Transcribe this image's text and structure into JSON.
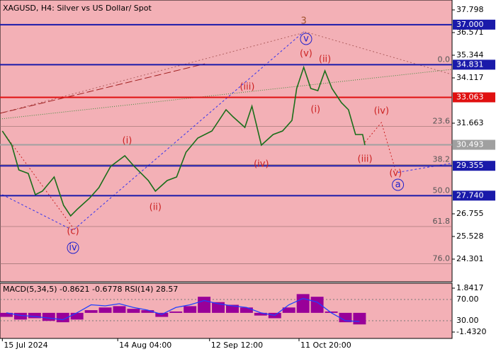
{
  "chart_data": [
    {
      "type": "line",
      "title": "XAGUSD, H4:  Silver vs US Dollar/ Spot",
      "x": [
        1,
        5,
        8,
        12,
        15,
        18,
        23,
        27,
        30,
        33,
        38,
        42,
        47,
        53,
        57,
        63,
        66,
        71,
        75,
        79,
        84,
        90,
        96,
        99,
        104,
        107,
        111,
        116,
        120,
        124,
        126,
        129,
        132,
        135,
        138,
        141,
        145,
        148,
        151,
        154,
        155
      ],
      "values": [
        31.241,
        30.475,
        29.133,
        28.941,
        27.791,
        27.982,
        28.749,
        27.216,
        26.641,
        27.024,
        27.599,
        28.174,
        29.325,
        29.9,
        29.325,
        28.557,
        27.982,
        28.557,
        28.749,
        30.091,
        30.858,
        31.241,
        32.392,
        32.008,
        31.433,
        32.584,
        30.475,
        31.05,
        31.241,
        31.817,
        33.542,
        34.692,
        33.542,
        33.427,
        34.501,
        33.542,
        32.775,
        32.392,
        31.05,
        31.05,
        30.475
      ],
      "color": "#1a6e1a",
      "background": "#f3b0b6",
      "xlim": [
        0,
        192
      ],
      "ylim": [
        23.074,
        38.335
      ],
      "xticks": [
        {
          "value": 1,
          "label": "15 Jul 2024"
        },
        {
          "value": 50,
          "label": "14 Aug 04:00"
        },
        {
          "value": 89,
          "label": "12 Sep 12:00"
        },
        {
          "value": 127,
          "label": "11 Oct 20:00"
        }
      ],
      "yticks": [
        37.798,
        36.571,
        35.344,
        34.117,
        31.663,
        26.755,
        25.528,
        24.301
      ],
      "levels": [
        {
          "value": 37.0,
          "label": "37.000",
          "color": "#1a1aaa"
        },
        {
          "value": 34.831,
          "label": "34.831",
          "color": "#1a1aaa"
        },
        {
          "value": 33.063,
          "label": "33.063",
          "color": "#e01010"
        },
        {
          "value": 30.493,
          "label": "30.493",
          "color": "#a0a0a0"
        },
        {
          "value": 29.355,
          "label": "29.355",
          "color": "#1a1aaa"
        },
        {
          "value": 27.74,
          "label": "27.740",
          "color": "#1a1aaa"
        }
      ],
      "fib_levels": [
        {
          "price": 34.831,
          "label": "0.0"
        },
        {
          "price": 31.484,
          "label": "23.6"
        },
        {
          "price": 29.414,
          "label": "38.2"
        },
        {
          "price": 27.74,
          "label": "50.0"
        },
        {
          "price": 26.067,
          "label": "61.8"
        },
        {
          "price": 24.053,
          "label": "76.0"
        }
      ],
      "guide_lines": [
        {
          "color": "#3333ee",
          "dash": "3,3",
          "x": [
            1,
            31,
            129
          ],
          "y": [
            27.791,
            25.86,
            36.61
          ]
        },
        {
          "color": "#3333ee",
          "dash": "3,3",
          "x": [
            169,
            192
          ],
          "y": [
            29.0,
            29.5
          ]
        },
        {
          "color": "#cc2222",
          "dash": "2,3",
          "x": [
            1,
            31
          ],
          "y": [
            31.241,
            26.0
          ]
        },
        {
          "color": "#cc2222",
          "dash": "2,3",
          "x": [
            154,
            162,
            168
          ],
          "y": [
            30.48,
            31.7,
            29.1
          ]
        },
        {
          "color": "#b06060",
          "dash": "2,3",
          "x": [
            0,
            130,
            192
          ],
          "y": [
            32.2,
            36.6,
            34.3
          ]
        },
        {
          "color": "#a02020",
          "dash": "10,4",
          "x": [
            0,
            87
          ],
          "y": [
            32.2,
            34.88
          ]
        },
        {
          "color": "#3a8a3a",
          "dash": "1,2",
          "x": [
            0,
            192
          ],
          "y": [
            31.89,
            34.58
          ]
        }
      ],
      "annotations": [
        {
          "text": "3",
          "x": 129,
          "y": 37.185,
          "color": "#a0522d",
          "circled": false
        },
        {
          "text": "v",
          "x": 130,
          "y": 36.226,
          "color": "#2222cc",
          "circled": true
        },
        {
          "text": "(v)",
          "x": 130,
          "y": 35.421,
          "color": "#cc2222",
          "circled": false
        },
        {
          "text": "(ii)",
          "x": 138,
          "y": 35.114,
          "color": "#cc2222",
          "circled": false
        },
        {
          "text": "(iii)",
          "x": 105,
          "y": 33.619,
          "color": "#cc2222",
          "circled": false
        },
        {
          "text": "(i)",
          "x": 134,
          "y": 32.392,
          "color": "#cc2222",
          "circled": false
        },
        {
          "text": "(iv)",
          "x": 162,
          "y": 32.315,
          "color": "#cc2222",
          "circled": false
        },
        {
          "text": "(iv)",
          "x": 111,
          "y": 29.439,
          "color": "#cc2222",
          "circled": false
        },
        {
          "text": "(iii)",
          "x": 155,
          "y": 29.708,
          "color": "#cc2222",
          "circled": false
        },
        {
          "text": "(v)",
          "x": 168,
          "y": 28.941,
          "color": "#cc2222",
          "circled": false
        },
        {
          "text": "a",
          "x": 169,
          "y": 28.327,
          "color": "#2222cc",
          "circled": true
        },
        {
          "text": "(i)",
          "x": 54,
          "y": 30.705,
          "color": "#cc2222",
          "circled": false
        },
        {
          "text": "(ii)",
          "x": 66,
          "y": 27.101,
          "color": "#cc2222",
          "circled": false
        },
        {
          "text": "(c)",
          "x": 31,
          "y": 25.797,
          "color": "#cc2222",
          "circled": false
        },
        {
          "text": "iv",
          "x": 31,
          "y": 24.915,
          "color": "#2222cc",
          "circled": true
        }
      ]
    },
    {
      "type": "bar",
      "title": "MACD(5,34,5) -0.8621 -0.6778 RSI(14) 28.57",
      "x": [
        0,
        6,
        12,
        18,
        24,
        30,
        36,
        42,
        48,
        54,
        60,
        66,
        72,
        78,
        84,
        90,
        96,
        102,
        108,
        114,
        120,
        126,
        132,
        138,
        144,
        150
      ],
      "values": [
        -0.3,
        -0.5,
        -0.4,
        -0.6,
        -0.7,
        -0.5,
        0.2,
        0.4,
        0.5,
        0.3,
        0.2,
        -0.3,
        0.1,
        0.5,
        1.2,
        0.8,
        0.6,
        0.4,
        -0.2,
        -0.4,
        0.4,
        1.4,
        1.2,
        0.1,
        -0.7,
        -0.8621
      ],
      "color": "#990099",
      "background": "#f3b0b6",
      "xlim": [
        0,
        192
      ],
      "ylim": [
        -1.907,
        2.211
      ],
      "yticks": [
        1.8417,
        {
          "value": -1.432,
          "label": "-1.4320"
        }
      ],
      "rsi": {
        "axis": "y2",
        "color": "#2040ff",
        "values": [
          45,
          40,
          38,
          35,
          32,
          45,
          60,
          58,
          62,
          55,
          50,
          42,
          55,
          60,
          68,
          62,
          58,
          55,
          45,
          40,
          60,
          72,
          65,
          45,
          30,
          28.57
        ]
      },
      "y2lim": [
        -3.3,
        100.7
      ],
      "y2ticks": [
        {
          "value": 70,
          "label": "70.00"
        },
        {
          "value": 30,
          "label": "30.00"
        }
      ]
    }
  ]
}
